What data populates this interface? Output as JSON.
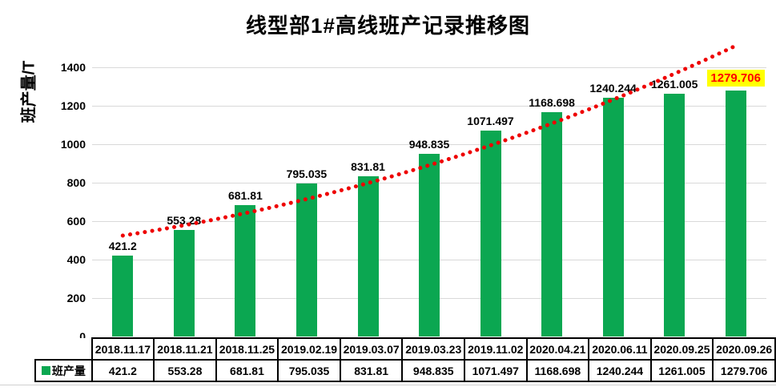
{
  "title": "线型部1#高线班产记录推移图",
  "legend": {
    "label": "班产量",
    "swatch_icon": "green-square-icon"
  },
  "chart_data": {
    "type": "bar",
    "title": "线型部1#高线班产记录推移图",
    "ylabel": "班产量/T",
    "xlabel": "",
    "categories": [
      "2018.11.17",
      "2018.11.21",
      "2018.11.25",
      "2019.02.19",
      "2019.03.07",
      "2019.03.23",
      "2019.11.02",
      "2020.04.21",
      "2020.06.11",
      "2020.09.25",
      "2020.09.26"
    ],
    "series": [
      {
        "name": "班产量",
        "values": [
          421.2,
          553.28,
          681.81,
          795.035,
          831.81,
          948.835,
          1071.497,
          1168.698,
          1240.244,
          1261.005,
          1279.706
        ],
        "value_labels": [
          "421.2",
          "553.28",
          "681.81",
          "795.035",
          "831.81",
          "948.835",
          "1071.497",
          "1168.698",
          "1240.244",
          "1261.005",
          "1279.706"
        ]
      }
    ],
    "ylim": [
      0,
      1400
    ],
    "y_ticks": [
      0,
      200,
      400,
      600,
      800,
      1000,
      1200,
      1400
    ],
    "grid": true,
    "legend_position": "bottom-left-table-header",
    "highlight_index": 10,
    "trendline": {
      "style": "dotted",
      "color": "#ee0000",
      "points_col_value": [
        [
          0,
          525
        ],
        [
          5.05,
          896
        ],
        [
          10.0,
          1512
        ]
      ]
    }
  },
  "colors": {
    "bar": "#0ba751",
    "trend": "#ee0000",
    "highlight_bg": "#ffff00",
    "highlight_text": "#ff0000",
    "gridline": "#d9d9d9",
    "table_border": "#000000",
    "text": "#000000"
  }
}
